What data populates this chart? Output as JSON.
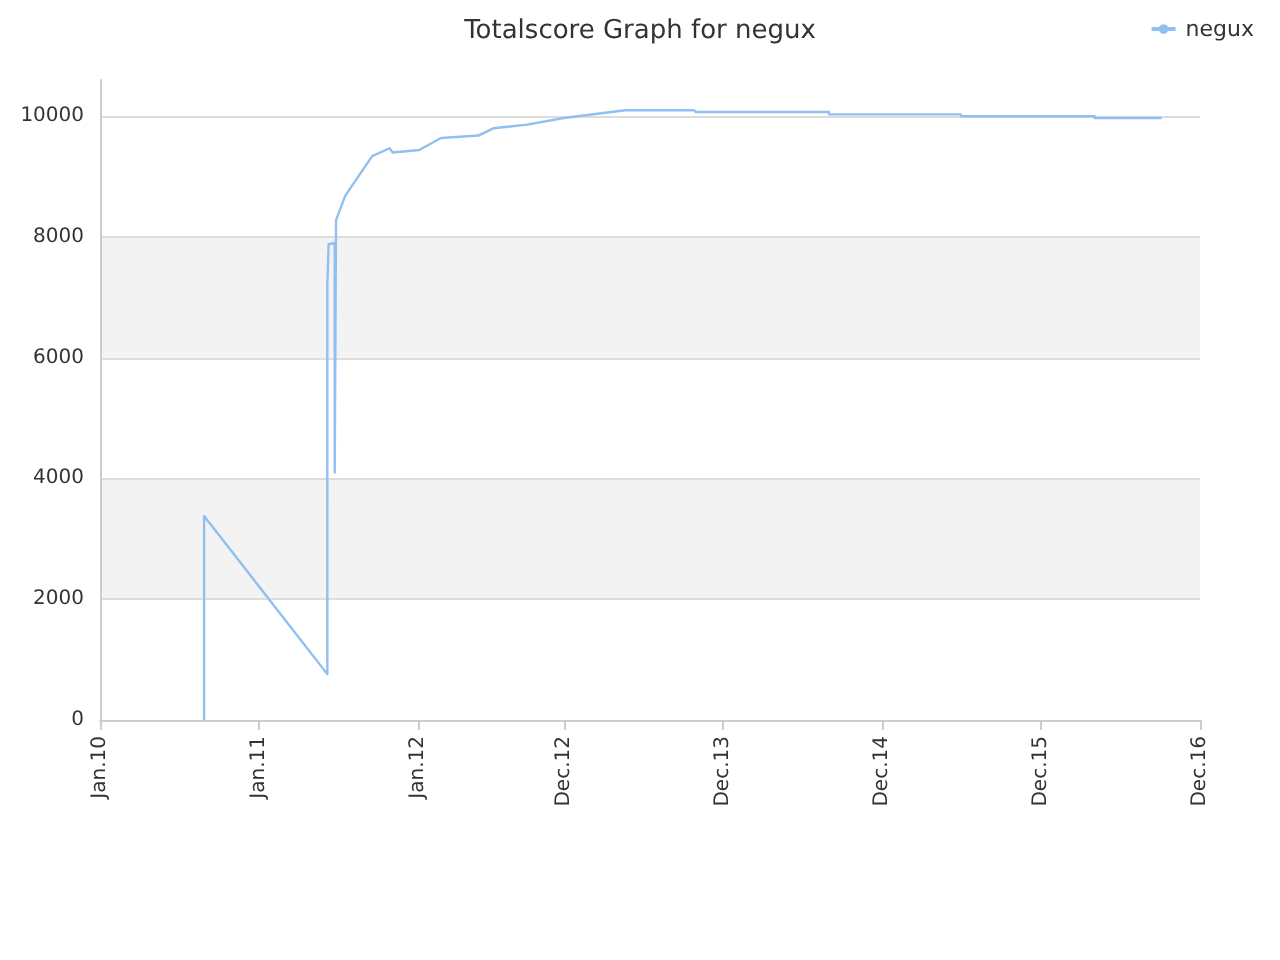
{
  "chart_data": {
    "type": "line",
    "title": "Totalscore Graph for negux",
    "x": [
      "2010-08-28",
      "2010-08-28",
      "2011-06-07",
      "2011-06-07",
      "2011-06-10",
      "2011-06-24",
      "2011-06-24",
      "2011-06-27",
      "2011-07-18",
      "2011-09-18",
      "2011-10-28",
      "2011-11-04",
      "2012-01-04",
      "2012-02-23",
      "2012-05-19",
      "2012-06-22",
      "2012-09-08",
      "2012-12-01",
      "2013-04-21",
      "2013-09-26",
      "2013-09-30",
      "2014-08-02",
      "2014-08-02",
      "2015-06-01",
      "2015-06-01",
      "2016-04-03",
      "2016-04-03",
      "2016-09-04"
    ],
    "series": [
      {
        "name": "negux",
        "color": "#90c0f0",
        "values": [
          0,
          3380,
          760,
          7190,
          7880,
          7900,
          4100,
          8280,
          8680,
          9340,
          9470,
          9400,
          9440,
          9640,
          9680,
          9800,
          9860,
          9970,
          10100,
          10100,
          10070,
          10070,
          10030,
          10030,
          10000,
          10000,
          9970,
          9970
        ]
      }
    ],
    "xlim": [
      "2010-01",
      "2016-12"
    ],
    "xticks": [
      {
        "value": "2010-01",
        "label": "Jan.10"
      },
      {
        "value": "2011-01",
        "label": "Jan.11"
      },
      {
        "value": "2012-01",
        "label": "Jan.12"
      },
      {
        "value": "2012-12",
        "label": "Dec.12"
      },
      {
        "value": "2013-12",
        "label": "Dec.13"
      },
      {
        "value": "2014-12",
        "label": "Dec.14"
      },
      {
        "value": "2015-12",
        "label": "Dec.15"
      },
      {
        "value": "2016-12",
        "label": "Dec.16"
      }
    ],
    "ylim": [
      0,
      10600
    ],
    "yticks": [
      0,
      2000,
      4000,
      6000,
      8000,
      10000
    ],
    "grid": "y",
    "legend": "top right",
    "marker": "none",
    "line_style": "solid"
  }
}
